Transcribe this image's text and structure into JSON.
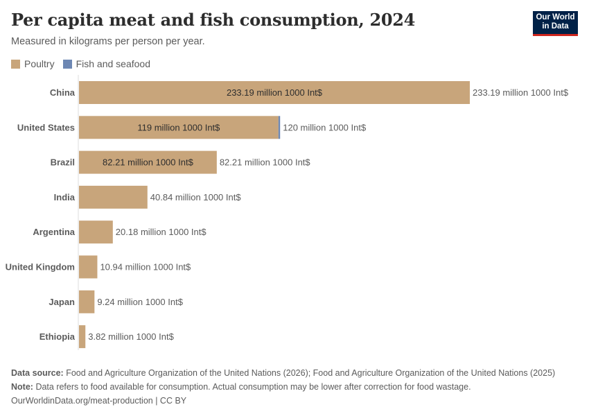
{
  "header": {
    "title": "Per capita meat and fish consumption, 2024",
    "subtitle": "Measured in kilograms per person per year.",
    "logo_line1": "Our World",
    "logo_line2": "in Data"
  },
  "legend": [
    {
      "label": "Poultry",
      "color": "#c8a57b"
    },
    {
      "label": "Fish and seafood",
      "color": "#6d87b3"
    }
  ],
  "footer": {
    "source_label": "Data source:",
    "source_text": "Food and Agriculture Organization of the United Nations (2026); Food and Agriculture Organization of the United Nations (2025)",
    "note_label": "Note:",
    "note_text": "Data refers to food available for consumption. Actual consumption may be lower after correction for food wastage.",
    "url": "OurWorldinData.org/meat-production | CC BY"
  },
  "chart_data": {
    "type": "bar",
    "orientation": "horizontal",
    "stacked": true,
    "title": "Per capita meat and fish consumption, 2024",
    "xlabel": "",
    "ylabel": "",
    "xlim": [
      0,
      233.19
    ],
    "grid": false,
    "legend_position": "top-left",
    "categories": [
      "China",
      "United States",
      "Brazil",
      "India",
      "Argentina",
      "United Kingdom",
      "Japan",
      "Ethiopia"
    ],
    "series": [
      {
        "name": "Poultry",
        "color": "#c8a57b",
        "values": [
          233.19,
          119,
          82.21,
          40.84,
          20.18,
          10.94,
          9.24,
          3.82
        ]
      },
      {
        "name": "Fish and seafood",
        "color": "#6d87b3",
        "values": [
          0,
          1,
          0,
          0,
          0,
          0,
          0,
          0
        ]
      }
    ],
    "totals": [
      233.19,
      120,
      82.21,
      40.84,
      20.18,
      10.94,
      9.24,
      3.82
    ],
    "inside_labels": [
      "233.19 million 1000 Int$",
      "119 million 1000 Int$",
      "82.21 million 1000 Int$",
      "",
      "",
      "",
      "",
      ""
    ],
    "total_labels": [
      "233.19 million 1000 Int$",
      "120 million 1000 Int$",
      "82.21 million 1000 Int$",
      "40.84 million 1000 Int$",
      "20.18 million 1000 Int$",
      "10.94 million 1000 Int$",
      "9.24 million 1000 Int$",
      "3.82 million 1000 Int$"
    ]
  }
}
